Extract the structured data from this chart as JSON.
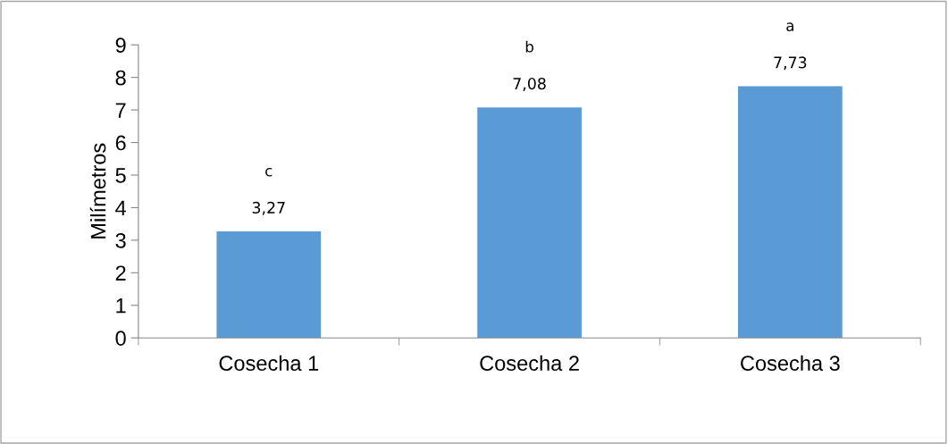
{
  "chart_data": {
    "type": "bar",
    "ylabel": "Milímetros",
    "categories": [
      "Cosecha 1",
      "Cosecha 2",
      "Cosecha 3"
    ],
    "values": [
      3.27,
      7.08,
      7.73
    ],
    "color": "#5b9bd5",
    "value_labels": [
      "3,27",
      "7,08",
      "7,73"
    ],
    "annotations": [
      "c",
      "b",
      "a"
    ],
    "ylim": [
      0,
      9
    ],
    "yticks": [
      0,
      1,
      2,
      3,
      4,
      5,
      6,
      7,
      8,
      9
    ],
    "grid": false,
    "legend": false
  }
}
